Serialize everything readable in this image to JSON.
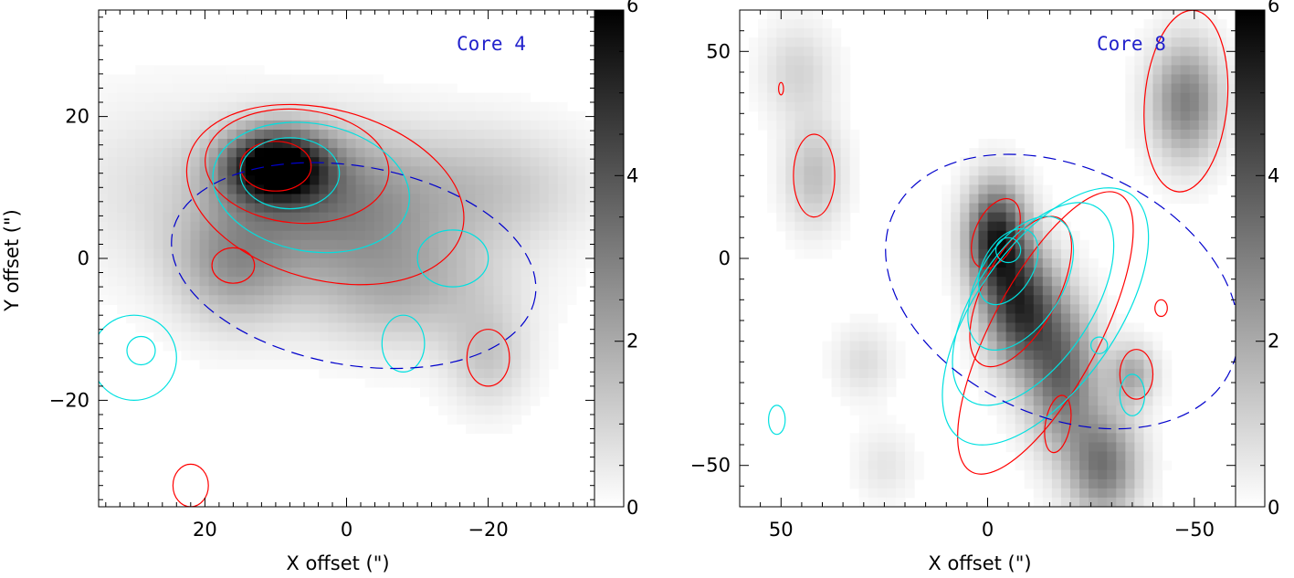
{
  "chart_data": [
    {
      "type": "heatmap",
      "title": "Core 4",
      "xlabel": "X offset (\")",
      "ylabel": "Y offset (\")",
      "xlim": [
        35,
        -35
      ],
      "ylim": [
        -35,
        35
      ],
      "x_ticks": [
        20,
        0,
        -20
      ],
      "y_ticks": [
        20,
        0,
        -20
      ],
      "x_tick_labels": [
        "20",
        "0",
        "−20"
      ],
      "y_tick_labels": [
        "20",
        "0",
        "−20"
      ],
      "colorbar": {
        "min": 0,
        "max": 6,
        "ticks": [
          0,
          2,
          4,
          6
        ],
        "tick_labels": [
          "0",
          "2",
          "4",
          "6"
        ]
      },
      "series": [
        {
          "name": "grayscale emission",
          "color": "#000000"
        },
        {
          "name": "red contours",
          "color": "#ff0000"
        },
        {
          "name": "cyan contours",
          "color": "#00e0e0"
        },
        {
          "name": "blue dashed ellipse",
          "color": "#0000cc"
        }
      ],
      "blobs": [
        {
          "x": 10,
          "y": 13,
          "sx": 5,
          "sy": 3.5,
          "amp": 6
        },
        {
          "x": 2,
          "y": 8,
          "sx": 10,
          "sy": 7,
          "amp": 2.6
        },
        {
          "x": 16,
          "y": -1,
          "sx": 6,
          "sy": 6,
          "amp": 2
        },
        {
          "x": -8,
          "y": -4,
          "sx": 10,
          "sy": 6,
          "amp": 1.7
        },
        {
          "x": -20,
          "y": 10,
          "sx": 10,
          "sy": 6,
          "amp": 1.3
        },
        {
          "x": -20,
          "y": -14,
          "sx": 4,
          "sy": 5,
          "amp": 1.2
        },
        {
          "x": 25,
          "y": 10,
          "sx": 12,
          "sy": 9,
          "amp": 0.7
        }
      ],
      "red_contours": [
        {
          "cx": 10,
          "cy": 13,
          "rx": 5,
          "ry": 3.5,
          "rot": 0
        },
        {
          "cx": 7,
          "cy": 13,
          "rx": 13,
          "ry": 8,
          "rot": 5
        },
        {
          "cx": 3,
          "cy": 9,
          "rx": 20,
          "ry": 12,
          "rot": 15
        },
        {
          "cx": 16,
          "cy": -1,
          "rx": 3,
          "ry": 2.5,
          "rot": 0
        },
        {
          "cx": -20,
          "cy": -14,
          "rx": 3,
          "ry": 4,
          "rot": 0
        },
        {
          "cx": 22,
          "cy": -32,
          "rx": 2.5,
          "ry": 3,
          "rot": 0
        }
      ],
      "cyan_contours": [
        {
          "cx": 8,
          "cy": 12,
          "rx": 7,
          "ry": 5,
          "rot": 0
        },
        {
          "cx": 5,
          "cy": 10,
          "rx": 14,
          "ry": 9,
          "rot": 10
        },
        {
          "cx": 29,
          "cy": -13,
          "rx": 2,
          "ry": 2,
          "rot": 0
        },
        {
          "cx": 30,
          "cy": -14,
          "rx": 6,
          "ry": 6,
          "rot": 0
        },
        {
          "cx": -8,
          "cy": -12,
          "rx": 3,
          "ry": 4,
          "rot": 0
        },
        {
          "cx": -15,
          "cy": 0,
          "rx": 5,
          "ry": 4,
          "rot": 0
        }
      ],
      "ellipse": {
        "cx": -1,
        "cy": -1,
        "rx": 26,
        "ry": 14,
        "rot": 10
      }
    },
    {
      "type": "heatmap",
      "title": "Core 8",
      "xlabel": "X offset (\")",
      "ylabel": "",
      "xlim": [
        60,
        -60
      ],
      "ylim": [
        -60,
        60
      ],
      "x_ticks": [
        50,
        0,
        -50
      ],
      "y_ticks": [
        50,
        0,
        -50
      ],
      "x_tick_labels": [
        "50",
        "0",
        "−50"
      ],
      "y_tick_labels": [
        "50",
        "0",
        "−50"
      ],
      "colorbar": {
        "min": 0,
        "max": 6,
        "ticks": [
          0,
          2,
          4,
          6
        ],
        "tick_labels": [
          "0",
          "2",
          "4",
          "6"
        ]
      },
      "series": [
        {
          "name": "grayscale emission",
          "color": "#000000"
        },
        {
          "name": "red contours",
          "color": "#ff0000"
        },
        {
          "name": "cyan contours",
          "color": "#00e0e0"
        },
        {
          "name": "blue dashed ellipse",
          "color": "#0000cc"
        }
      ],
      "blobs": [
        {
          "x": -2,
          "y": 5,
          "sx": 5,
          "sy": 9,
          "amp": 5
        },
        {
          "x": -8,
          "y": -12,
          "sx": 6,
          "sy": 10,
          "amp": 4.5
        },
        {
          "x": -18,
          "y": -28,
          "sx": 6,
          "sy": 12,
          "amp": 3.5
        },
        {
          "x": -28,
          "y": -50,
          "sx": 6,
          "sy": 9,
          "amp": 3.2
        },
        {
          "x": -35,
          "y": -28,
          "sx": 4,
          "sy": 5,
          "amp": 2
        },
        {
          "x": -48,
          "y": 38,
          "sx": 6,
          "sy": 10,
          "amp": 3
        },
        {
          "x": 42,
          "y": 20,
          "sx": 5,
          "sy": 9,
          "amp": 1.5
        },
        {
          "x": 46,
          "y": 45,
          "sx": 6,
          "sy": 8,
          "amp": 1
        },
        {
          "x": 30,
          "y": -25,
          "sx": 5,
          "sy": 6,
          "amp": 0.8
        },
        {
          "x": 25,
          "y": -50,
          "sx": 5,
          "sy": 6,
          "amp": 0.6
        }
      ],
      "red_contours": [
        {
          "cx": -2,
          "cy": 6,
          "rx": 5,
          "ry": 9,
          "rot": 25
        },
        {
          "cx": -8,
          "cy": -8,
          "rx": 9,
          "ry": 20,
          "rot": 28
        },
        {
          "cx": -14,
          "cy": -18,
          "rx": 13,
          "ry": 38,
          "rot": 28
        },
        {
          "cx": -17,
          "cy": -40,
          "rx": 3,
          "ry": 7,
          "rot": 10
        },
        {
          "cx": -48,
          "cy": 38,
          "rx": 10,
          "ry": 22,
          "rot": 5
        },
        {
          "cx": 42,
          "cy": 20,
          "rx": 5,
          "ry": 10,
          "rot": 0
        },
        {
          "cx": -36,
          "cy": -28,
          "rx": 4,
          "ry": 6,
          "rot": 0
        },
        {
          "cx": -42,
          "cy": -12,
          "rx": 1.5,
          "ry": 2,
          "rot": 0
        },
        {
          "cx": 50,
          "cy": 41,
          "rx": 0.6,
          "ry": 1.5,
          "rot": 0
        }
      ],
      "cyan_contours": [
        {
          "cx": -5,
          "cy": 2,
          "rx": 3,
          "ry": 3,
          "rot": 0
        },
        {
          "cx": -5,
          "cy": -2,
          "rx": 6,
          "ry": 10,
          "rot": 30
        },
        {
          "cx": -8,
          "cy": -6,
          "rx": 10,
          "ry": 18,
          "rot": 32
        },
        {
          "cx": -11,
          "cy": -11,
          "rx": 14,
          "ry": 28,
          "rot": 34
        },
        {
          "cx": -14,
          "cy": -14,
          "rx": 17,
          "ry": 36,
          "rot": 35
        },
        {
          "cx": -27,
          "cy": -21,
          "rx": 2,
          "ry": 2,
          "rot": 0
        },
        {
          "cx": 51,
          "cy": -39,
          "rx": 2,
          "ry": 3.5,
          "rot": 0
        },
        {
          "cx": -35,
          "cy": -33,
          "rx": 3,
          "ry": 5,
          "rot": 0
        }
      ],
      "ellipse": {
        "cx": -18,
        "cy": -8,
        "rx": 45,
        "ry": 30,
        "rot": 25
      }
    }
  ]
}
